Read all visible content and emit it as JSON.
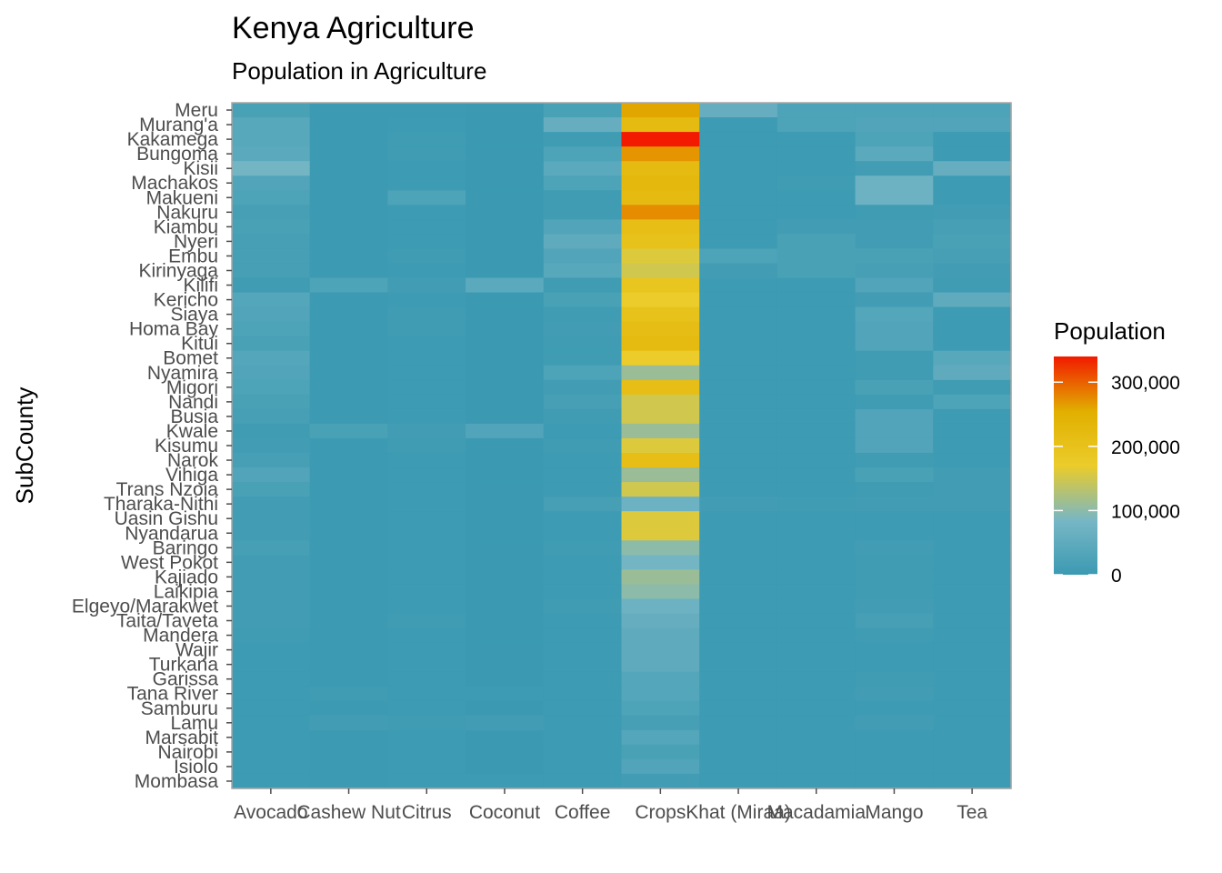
{
  "chart_data": {
    "type": "heatmap",
    "title": "Kenya Agriculture",
    "subtitle": "Population in Agriculture",
    "ylabel": "SubCounty",
    "xlabel": "",
    "x": [
      "Avocado",
      "Cashew Nut",
      "Citrus",
      "Coconut",
      "Coffee",
      "Crops",
      "Khat (Miraa)",
      "Macadamia",
      "Mango",
      "Tea"
    ],
    "y": [
      "Meru",
      "Murang'a",
      "Kakamega",
      "Bungoma",
      "Kisii",
      "Machakos",
      "Makueni",
      "Nakuru",
      "Kiambu",
      "Nyeri",
      "Embu",
      "Kirinyaga",
      "Kilifi",
      "Kericho",
      "Siaya",
      "Homa Bay",
      "Kitui",
      "Bomet",
      "Nyamira",
      "Migori",
      "Nandi",
      "Busia",
      "Kwale",
      "Kisumu",
      "Narok",
      "Vihiga",
      "Trans Nzoia",
      "Tharaka-Nithi",
      "Uasin Gishu",
      "Nyandarua",
      "Baringo",
      "West Pokot",
      "Kajiado",
      "Laikipia",
      "Elgeyo/Marakwet",
      "Taita/Taveta",
      "Mandera",
      "Wajir",
      "Turkana",
      "Garissa",
      "Tana River",
      "Samburu",
      "Lamu",
      "Marsabit",
      "Nairobi",
      "Isiolo",
      "Mombasa"
    ],
    "values": [
      [
        20000,
        2000,
        2000,
        0,
        20000,
        260000,
        60000,
        25000,
        25000,
        25000
      ],
      [
        40000,
        2000,
        3000,
        0,
        60000,
        220000,
        3000,
        25000,
        30000,
        30000
      ],
      [
        40000,
        2000,
        5000,
        0,
        5000,
        340000,
        3000,
        3000,
        25000,
        3000
      ],
      [
        45000,
        2000,
        5000,
        0,
        25000,
        270000,
        3000,
        3000,
        45000,
        3000
      ],
      [
        80000,
        2000,
        3000,
        0,
        45000,
        220000,
        3000,
        3000,
        10000,
        60000
      ],
      [
        30000,
        2000,
        3000,
        0,
        25000,
        230000,
        3000,
        5000,
        70000,
        3000
      ],
      [
        25000,
        2000,
        25000,
        0,
        5000,
        220000,
        3000,
        3000,
        70000,
        3000
      ],
      [
        15000,
        2000,
        3000,
        0,
        5000,
        275000,
        3000,
        3000,
        5000,
        10000
      ],
      [
        20000,
        2000,
        3000,
        0,
        30000,
        210000,
        3000,
        10000,
        10000,
        15000
      ],
      [
        15000,
        2000,
        3000,
        0,
        50000,
        200000,
        3000,
        20000,
        10000,
        20000
      ],
      [
        15000,
        2000,
        5000,
        0,
        30000,
        160000,
        25000,
        20000,
        20000,
        15000
      ],
      [
        15000,
        2000,
        3000,
        0,
        40000,
        150000,
        10000,
        20000,
        15000,
        10000
      ],
      [
        5000,
        25000,
        10000,
        45000,
        5000,
        190000,
        3000,
        3000,
        30000,
        5000
      ],
      [
        35000,
        2000,
        3000,
        0,
        20000,
        170000,
        3000,
        3000,
        10000,
        50000
      ],
      [
        30000,
        2000,
        5000,
        0,
        5000,
        200000,
        3000,
        3000,
        35000,
        3000
      ],
      [
        25000,
        2000,
        5000,
        0,
        10000,
        215000,
        3000,
        3000,
        30000,
        3000
      ],
      [
        20000,
        2000,
        3000,
        0,
        5000,
        220000,
        3000,
        3000,
        30000,
        3000
      ],
      [
        35000,
        2000,
        3000,
        0,
        5000,
        170000,
        3000,
        3000,
        5000,
        40000
      ],
      [
        30000,
        2000,
        3000,
        0,
        25000,
        110000,
        3000,
        3000,
        5000,
        50000
      ],
      [
        25000,
        2000,
        3000,
        0,
        10000,
        210000,
        3000,
        3000,
        20000,
        5000
      ],
      [
        20000,
        2000,
        3000,
        0,
        15000,
        150000,
        3000,
        3000,
        5000,
        25000
      ],
      [
        15000,
        2000,
        3000,
        0,
        5000,
        150000,
        3000,
        3000,
        30000,
        3000
      ],
      [
        5000,
        20000,
        10000,
        30000,
        3000,
        110000,
        3000,
        3000,
        30000,
        3000
      ],
      [
        10000,
        2000,
        5000,
        0,
        5000,
        160000,
        3000,
        3000,
        30000,
        3000
      ],
      [
        15000,
        2000,
        3000,
        0,
        3000,
        210000,
        3000,
        3000,
        5000,
        3000
      ],
      [
        30000,
        2000,
        3000,
        0,
        3000,
        110000,
        3000,
        3000,
        20000,
        10000
      ],
      [
        20000,
        2000,
        3000,
        0,
        3000,
        150000,
        3000,
        3000,
        5000,
        10000
      ],
      [
        10000,
        2000,
        3000,
        0,
        15000,
        70000,
        10000,
        5000,
        10000,
        10000
      ],
      [
        10000,
        2000,
        3000,
        0,
        3000,
        160000,
        3000,
        3000,
        3000,
        3000
      ],
      [
        10000,
        2000,
        3000,
        0,
        3000,
        160000,
        3000,
        3000,
        3000,
        3000
      ],
      [
        15000,
        2000,
        3000,
        0,
        5000,
        100000,
        3000,
        3000,
        10000,
        3000
      ],
      [
        10000,
        2000,
        3000,
        0,
        3000,
        80000,
        3000,
        3000,
        5000,
        3000
      ],
      [
        10000,
        2000,
        3000,
        0,
        3000,
        110000,
        3000,
        3000,
        5000,
        3000
      ],
      [
        10000,
        2000,
        3000,
        0,
        3000,
        100000,
        3000,
        3000,
        5000,
        3000
      ],
      [
        10000,
        2000,
        3000,
        0,
        5000,
        70000,
        3000,
        3000,
        10000,
        3000
      ],
      [
        10000,
        2000,
        5000,
        0,
        3000,
        60000,
        3000,
        3000,
        15000,
        3000
      ],
      [
        5000,
        2000,
        3000,
        0,
        3000,
        50000,
        3000,
        3000,
        5000,
        3000
      ],
      [
        3000,
        2000,
        3000,
        0,
        3000,
        50000,
        3000,
        3000,
        3000,
        3000
      ],
      [
        3000,
        2000,
        3000,
        0,
        3000,
        50000,
        3000,
        3000,
        3000,
        3000
      ],
      [
        3000,
        2000,
        3000,
        0,
        3000,
        35000,
        3000,
        3000,
        5000,
        3000
      ],
      [
        3000,
        5000,
        3000,
        3000,
        3000,
        35000,
        3000,
        3000,
        10000,
        3000
      ],
      [
        3000,
        2000,
        3000,
        0,
        3000,
        25000,
        3000,
        3000,
        3000,
        3000
      ],
      [
        3000,
        10000,
        5000,
        10000,
        3000,
        15000,
        3000,
        3000,
        10000,
        3000
      ],
      [
        3000,
        2000,
        3000,
        0,
        3000,
        35000,
        3000,
        3000,
        3000,
        3000
      ],
      [
        3000,
        2000,
        3000,
        0,
        3000,
        20000,
        3000,
        3000,
        3000,
        3000
      ],
      [
        3000,
        2000,
        3000,
        0,
        3000,
        30000,
        3000,
        3000,
        3000,
        3000
      ],
      [
        3000,
        2000,
        3000,
        3000,
        3000,
        10000,
        3000,
        3000,
        3000,
        3000
      ]
    ],
    "legend": {
      "title": "Population",
      "range": [
        0,
        340000
      ],
      "breaks": [
        0,
        100000,
        200000,
        300000
      ],
      "break_labels": [
        "0",
        "100,000",
        "200,000",
        "300,000"
      ],
      "placement": "right"
    },
    "color_scale": {
      "stops": [
        {
          "value": 0,
          "color": "#3b9ab2"
        },
        {
          "value": 0.25,
          "color": "#78b7c5"
        },
        {
          "value": 0.5,
          "color": "#ebcc2a"
        },
        {
          "value": 0.75,
          "color": "#e1af00"
        },
        {
          "value": 1,
          "color": "#f21a00"
        }
      ],
      "panel_border": "#a6a6a6",
      "tick_color": "#4d4d4d"
    }
  }
}
